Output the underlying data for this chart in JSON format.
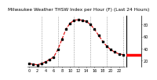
{
  "title": "Milwaukee Weather THSW Index per Hour (F) (Last 24 Hours)",
  "background_color": "#ffffff",
  "plot_bg_color": "#ffffff",
  "line_color": "#dd0000",
  "marker_color": "#000000",
  "grid_color": "#999999",
  "y_values": [
    15,
    14,
    13,
    15,
    18,
    22,
    26,
    38,
    55,
    72,
    82,
    87,
    88,
    87,
    85,
    80,
    72,
    62,
    52,
    44,
    38,
    34,
    31,
    30
  ],
  "x_values": [
    0,
    1,
    2,
    3,
    4,
    5,
    6,
    7,
    8,
    9,
    10,
    11,
    12,
    13,
    14,
    15,
    16,
    17,
    18,
    19,
    20,
    21,
    22,
    23
  ],
  "ylim": [
    10,
    95
  ],
  "xlim": [
    -0.5,
    23.5
  ],
  "ytick_values": [
    20,
    40,
    60,
    80
  ],
  "ytick_labels": [
    "20",
    "40",
    "60",
    "80"
  ],
  "current_value": 30,
  "current_bar_color": "#ff0000",
  "vgrid_positions": [
    3,
    7,
    11,
    15,
    19,
    23
  ],
  "marker_size": 1.5,
  "line_width": 0.8,
  "title_fontsize": 4.2,
  "tick_fontsize": 3.5
}
